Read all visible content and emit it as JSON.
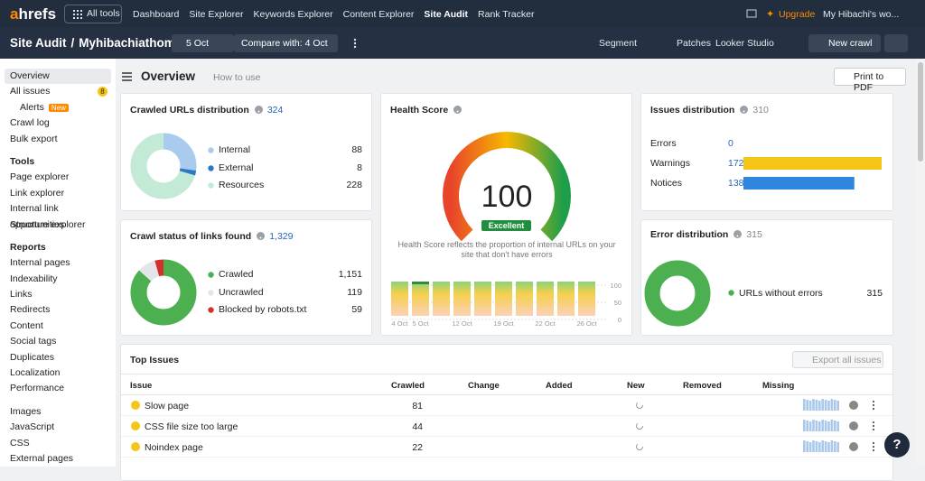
{
  "topnav": {
    "logo": "ahrefs",
    "all_tools": "All tools",
    "links": [
      "Dashboard",
      "Site Explorer",
      "Keywords Explorer",
      "Content Explorer",
      "Site Audit",
      "Rank Tracker"
    ],
    "upgrade": "Upgrade",
    "account": "My Hibachi's wo..."
  },
  "subnav": {
    "title": "Site Audit",
    "separator": "/",
    "project": "Myhibachiathome",
    "date": "5 Oct",
    "compare": "Compare with: 4 Oct",
    "segment": "Segment",
    "patches": "Patches",
    "looker": "Looker Studio",
    "new_crawl": "New crawl"
  },
  "sidebar": {
    "groups": [
      {
        "items": [
          {
            "label": "Overview"
          },
          {
            "label": "All issues",
            "badge": 8
          },
          {
            "label": "Alerts",
            "badge": "New"
          },
          {
            "label": "Crawl log"
          },
          {
            "label": "Bulk export"
          }
        ]
      },
      {
        "heading": "Tools",
        "items": [
          {
            "label": "Page explorer"
          },
          {
            "label": "Link explorer"
          },
          {
            "label": "Internal link opportunities"
          },
          {
            "label": "Structure explorer"
          }
        ]
      },
      {
        "heading": "Reports",
        "items": [
          {
            "label": "Internal pages"
          },
          {
            "label": "Indexability"
          },
          {
            "label": "Links"
          },
          {
            "label": "Redirects"
          },
          {
            "label": "Content"
          },
          {
            "label": "Social tags"
          },
          {
            "label": "Duplicates"
          },
          {
            "label": "Localization"
          },
          {
            "label": "Performance"
          }
        ]
      },
      {
        "items": [
          {
            "label": "Images"
          },
          {
            "label": "JavaScript"
          },
          {
            "label": "CSS"
          },
          {
            "label": "External pages"
          }
        ]
      }
    ]
  },
  "header": {
    "title": "Overview",
    "how_to": "How to use",
    "print": "Print to PDF"
  },
  "crawled_urls": {
    "title": "Crawled URLs distribution",
    "total": 324,
    "rows": [
      {
        "label": "Internal",
        "value": 88,
        "color": "#a8cbee"
      },
      {
        "label": "External",
        "value": 8,
        "color": "#2d78c4"
      },
      {
        "label": "Resources",
        "value": 228,
        "color": "#c3e9d7"
      }
    ]
  },
  "crawl_status": {
    "title": "Crawl status of links found",
    "total": {
      "value": 1329,
      "label": "1,329"
    },
    "rows": [
      {
        "label": "Crawled",
        "value": {
          "value": 1151,
          "label": "1,151"
        },
        "color": "#4caf50"
      },
      {
        "label": "Uncrawled",
        "value": {
          "value": 119,
          "label": "119"
        },
        "color": "#e3e5e8"
      },
      {
        "label": "Blocked by robots.txt",
        "value": {
          "value": 59,
          "label": "59"
        },
        "color": "#d32f2f"
      }
    ]
  },
  "health_score": {
    "title": "Health Score",
    "value": 100,
    "badge": "Excellent",
    "description": "Health Score reflects the proportion of internal URLs on your site that don't have errors",
    "history": {
      "categories": [
        "4 Oct",
        "5 Oct",
        null,
        "12 Oct",
        null,
        "19 Oct",
        null,
        "22 Oct",
        null,
        "26 Oct"
      ],
      "values": [
        100,
        100,
        100,
        100,
        100,
        100,
        100,
        100,
        100,
        100
      ],
      "ylim": [
        0,
        100
      ],
      "yticks": [
        0,
        50,
        100
      ]
    }
  },
  "issues_distribution": {
    "title": "Issues distribution",
    "total": 310,
    "rows": [
      {
        "label": "Errors",
        "value": 0,
        "color": "#e53935"
      },
      {
        "label": "Warnings",
        "value": 172,
        "color": "#f5c518"
      },
      {
        "label": "Notices",
        "value": 138,
        "color": "#2e86de"
      }
    ]
  },
  "error_distribution": {
    "title": "Error distribution",
    "total": 315,
    "rows": [
      {
        "label": "URLs without errors",
        "value": 315,
        "color": "#4caf50"
      }
    ]
  },
  "top_issues": {
    "title": "Top Issues",
    "export": "Export all issues",
    "columns": [
      "Issue",
      "Crawled",
      "Change",
      "Added",
      "New",
      "Removed",
      "Missing"
    ],
    "rows": [
      {
        "name": "Slow page",
        "crawled": 81
      },
      {
        "name": "CSS file size too large",
        "crawled": 44
      },
      {
        "name": "Noindex page",
        "crawled": 22
      }
    ]
  },
  "help": "?"
}
